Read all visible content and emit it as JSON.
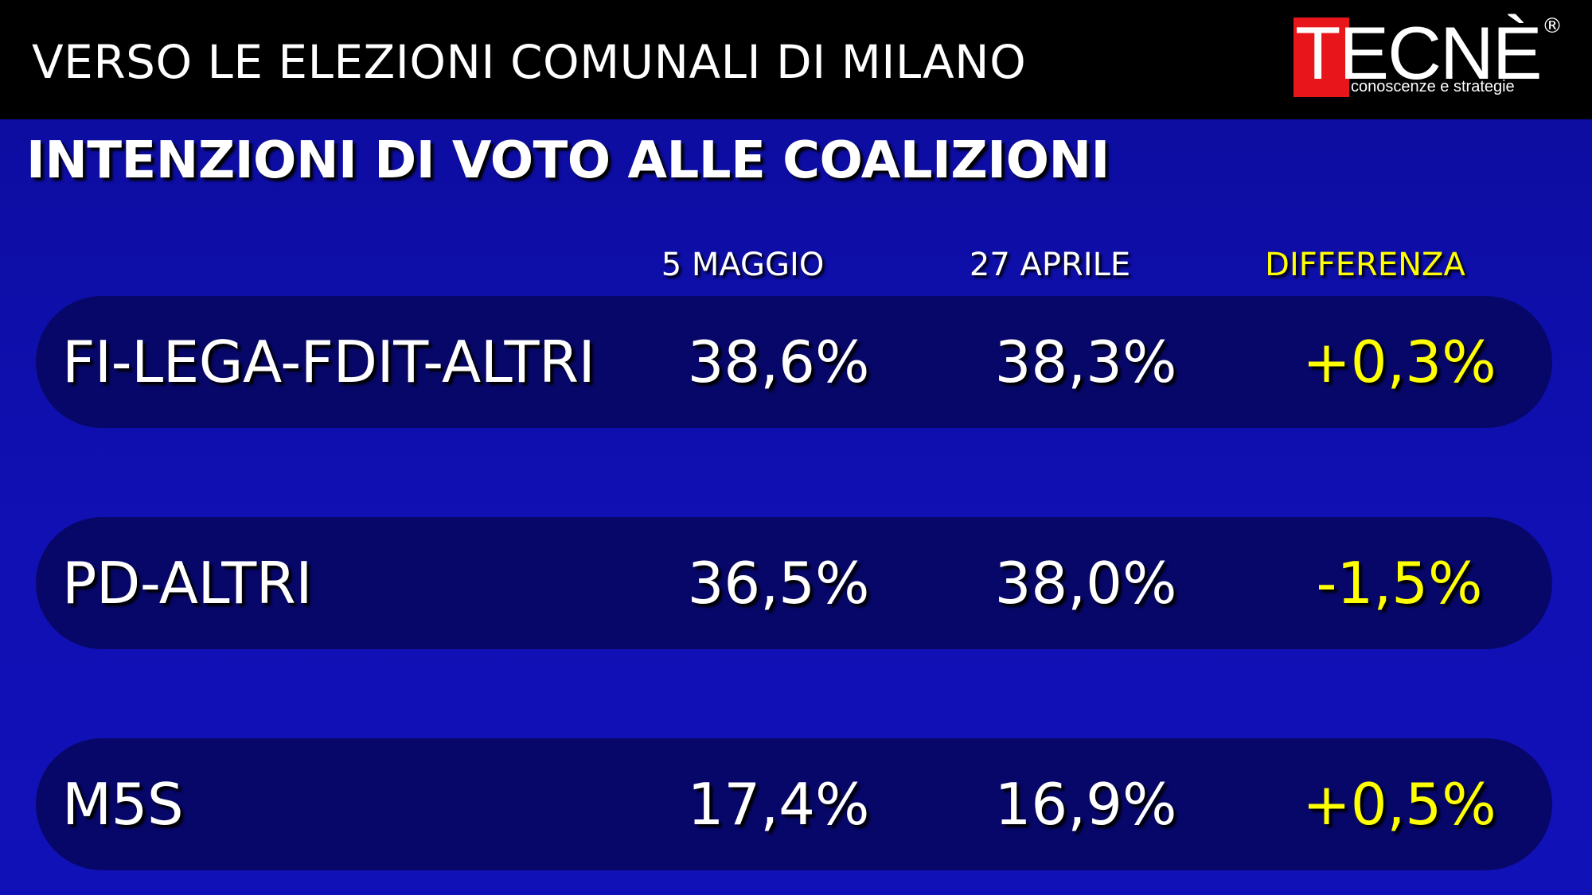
{
  "header": {
    "title": "VERSO LE ELEZIONI COMUNALI DI MILANO",
    "logo": {
      "word": "TECNÈ",
      "registered": "®",
      "tagline": "conoscenze e strategie"
    }
  },
  "subtitle": "INTENZIONI DI VOTO ALLE COALIZIONI",
  "columns": {
    "current": "5 MAGGIO",
    "previous": "27 APRILE",
    "difference": "DIFFERENZA"
  },
  "rows": [
    {
      "label": "FI-LEGA-FDIT-ALTRI",
      "current": "38,6%",
      "previous": "38,3%",
      "difference": "+0,3%"
    },
    {
      "label": "PD-ALTRI",
      "current": "36,5%",
      "previous": "38,0%",
      "difference": "-1,5%"
    },
    {
      "label": "M5S",
      "current": "17,4%",
      "previous": "16,9%",
      "difference": "+0,5%"
    }
  ],
  "colors": {
    "background": "#1010b4",
    "row_background": "#07076a",
    "header_bar": "#000000",
    "highlight": "#ffff00",
    "logo_red": "#e8161b"
  }
}
